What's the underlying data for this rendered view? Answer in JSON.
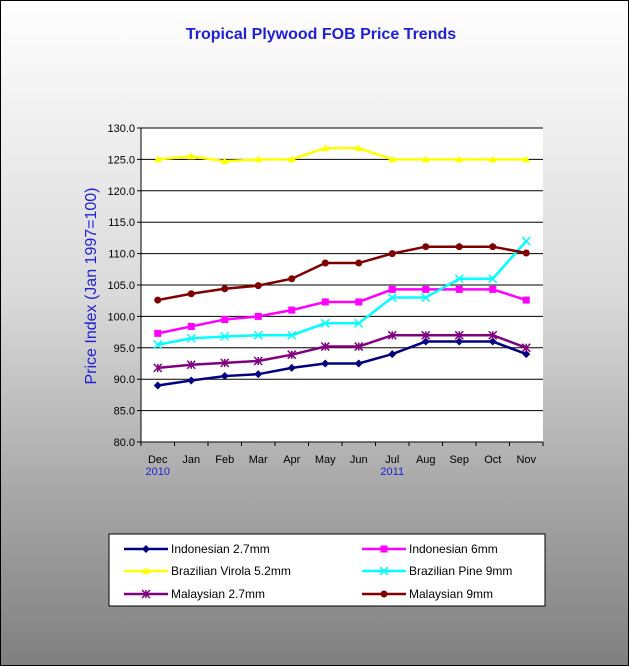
{
  "chart_data": {
    "type": "line",
    "title": "Tropical Plywood FOB Price Trends",
    "ylabel": "Price Index (Jan 1997=100)",
    "xlabel": "",
    "ylim": [
      80,
      130
    ],
    "yticks": [
      "80.0",
      "85.0",
      "90.0",
      "95.0",
      "100.0",
      "105.0",
      "110.0",
      "115.0",
      "120.0",
      "125.0",
      "130.0"
    ],
    "categories": [
      "Dec",
      "Jan",
      "Feb",
      "Mar",
      "Apr",
      "May",
      "Jun",
      "Jul",
      "Aug",
      "Sep",
      "Oct",
      "Nov"
    ],
    "year_labels": [
      {
        "index": 0,
        "text": "2010"
      },
      {
        "index": 7,
        "text": "2011"
      }
    ],
    "grid": "horizontal",
    "legend_position": "bottom",
    "series": [
      {
        "name": "Indonesian 2.7mm",
        "color": "#000080",
        "marker": "diamond",
        "values": [
          89,
          89.8,
          90.5,
          90.8,
          91.8,
          92.5,
          92.5,
          94,
          96,
          96,
          96,
          94
        ]
      },
      {
        "name": "Indonesian 6mm",
        "color": "#ff00ff",
        "marker": "square",
        "values": [
          97.3,
          98.4,
          99.5,
          100,
          101,
          102.3,
          102.3,
          104.3,
          104.3,
          104.3,
          104.3,
          102.6
        ]
      },
      {
        "name": "Brazilian Virola 5.2mm",
        "color": "#ffff00",
        "marker": "triangle",
        "values": [
          125,
          125.5,
          124.7,
          125,
          125,
          126.8,
          126.8,
          125,
          125,
          125,
          125,
          125
        ]
      },
      {
        "name": "Brazilian Pine 9mm",
        "color": "#00ffff",
        "marker": "x",
        "values": [
          95.5,
          96.5,
          96.8,
          97,
          97,
          98.9,
          98.9,
          103,
          103,
          106,
          106,
          112
        ]
      },
      {
        "name": "Malaysian 2.7mm",
        "color": "#800080",
        "marker": "star",
        "values": [
          91.8,
          92.3,
          92.6,
          92.9,
          93.9,
          95.2,
          95.2,
          97,
          97,
          97,
          97,
          95
        ]
      },
      {
        "name": "Malaysian 9mm",
        "color": "#800000",
        "marker": "circle",
        "values": [
          102.6,
          103.6,
          104.4,
          104.9,
          106,
          108.5,
          108.5,
          110,
          111.1,
          111.1,
          111.1,
          110.1
        ]
      }
    ]
  }
}
